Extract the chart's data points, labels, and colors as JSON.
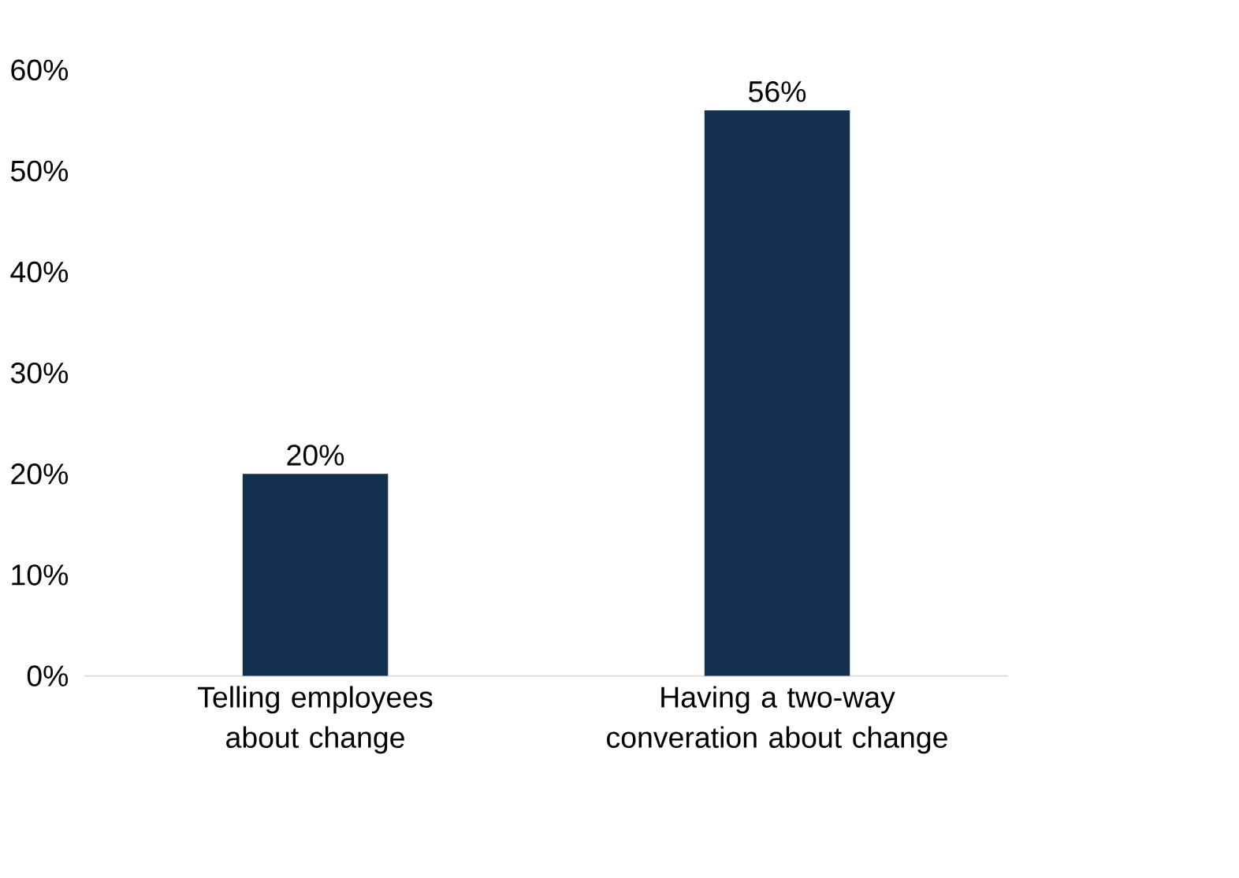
{
  "chart_data": {
    "type": "bar",
    "categories": [
      "Telling employees about change",
      "Having a two-way converation about change"
    ],
    "values": [
      20,
      56
    ],
    "value_labels": [
      "20%",
      "56%"
    ],
    "color": "#14304f",
    "ylim": [
      0,
      60
    ],
    "yticks": [
      {
        "value": 0,
        "label": "0%"
      },
      {
        "value": 10,
        "label": "10%"
      },
      {
        "value": 20,
        "label": "20%"
      },
      {
        "value": 30,
        "label": "30%"
      },
      {
        "value": 40,
        "label": "40%"
      },
      {
        "value": 50,
        "label": "50%"
      },
      {
        "value": 60,
        "label": "60%"
      }
    ],
    "grid": false
  }
}
